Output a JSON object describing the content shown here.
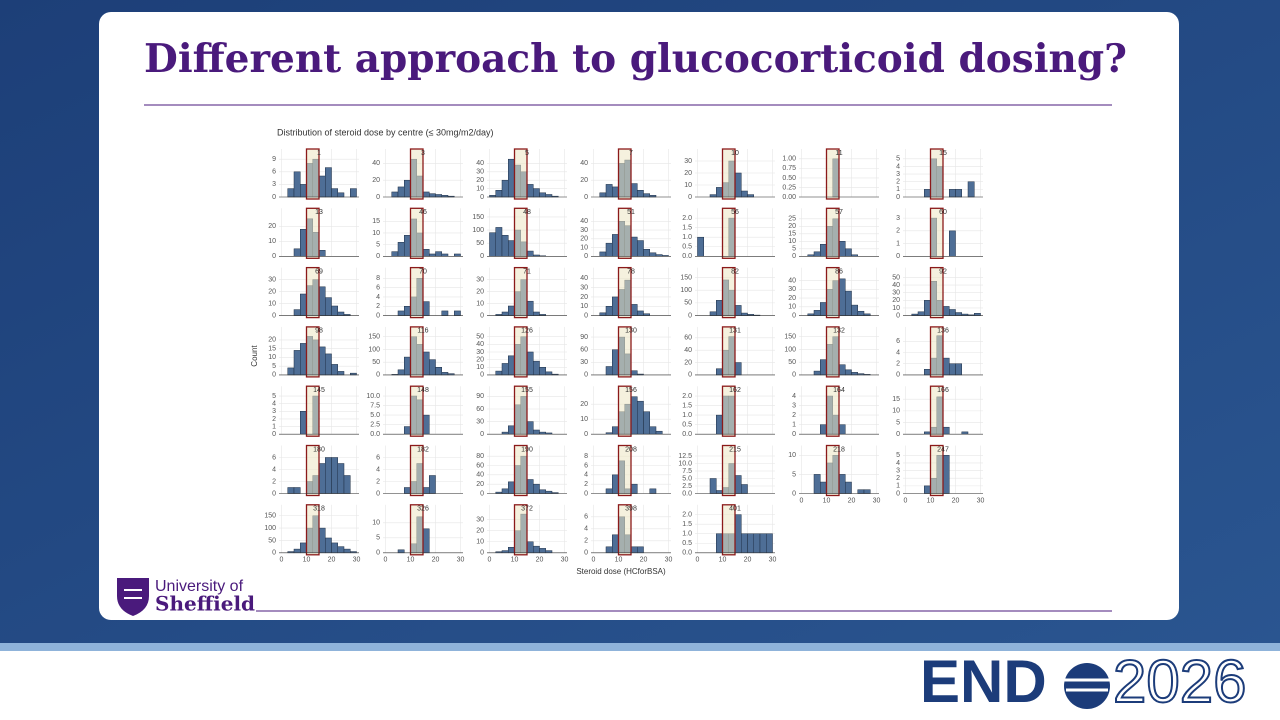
{
  "slide": {
    "title": "Different approach to glucocorticoid dosing?",
    "logo_line1": "University of",
    "logo_line2": "Sheffield",
    "brand_left": "END",
    "brand_right": "2026"
  },
  "chart_data": {
    "type": "histogram",
    "title": "Distribution of steroid dose by centre (≤ 30mg/m2/day)",
    "xlabel": "Steroid dose (HCforBSA)",
    "ylabel": "Count",
    "bins": [
      0,
      2.5,
      5,
      7.5,
      10,
      12.5,
      15,
      17.5,
      20,
      22.5,
      25,
      27.5,
      30
    ],
    "xlim": [
      -1,
      31
    ],
    "xticks": [
      0,
      10,
      20,
      30
    ],
    "highlight": [
      10,
      15
    ],
    "color": "#4e6e96",
    "highlight_color": "#8b1a1a",
    "grid": true,
    "panels": [
      {
        "name": "1",
        "counts": [
          0,
          2,
          6,
          3,
          8,
          9,
          5,
          7,
          2,
          1,
          0,
          2
        ],
        "ylim": [
          0,
          10
        ],
        "yticks": [
          0,
          3,
          6,
          9
        ]
      },
      {
        "name": "3",
        "counts": [
          0,
          6,
          12,
          20,
          45,
          25,
          6,
          4,
          3,
          2,
          1,
          0
        ],
        "ylim": [
          0,
          50
        ],
        "yticks": [
          0,
          20,
          40
        ]
      },
      {
        "name": "5",
        "counts": [
          2,
          8,
          20,
          45,
          38,
          30,
          15,
          10,
          5,
          3,
          1,
          0
        ],
        "ylim": [
          0,
          50
        ],
        "yticks": [
          0,
          10,
          20,
          30,
          40
        ]
      },
      {
        "name": "7",
        "counts": [
          0,
          5,
          15,
          12,
          40,
          44,
          16,
          8,
          4,
          2,
          0,
          0
        ],
        "ylim": [
          0,
          50
        ],
        "yticks": [
          0,
          20,
          40
        ]
      },
      {
        "name": "10",
        "counts": [
          0,
          0,
          2,
          8,
          12,
          30,
          20,
          5,
          2,
          0,
          0,
          0
        ],
        "ylim": [
          0,
          35
        ],
        "yticks": [
          0,
          10,
          20,
          30
        ]
      },
      {
        "name": "11",
        "counts": [
          0,
          0,
          0,
          0,
          0,
          1,
          0,
          0,
          0,
          0,
          0,
          0
        ],
        "ylim": [
          0,
          1.1
        ],
        "yticks": [
          {
            "value": 0,
            "label": "0.00"
          },
          0.25,
          {
            "value": 0.5,
            "label": "0.50"
          },
          0.75,
          {
            "value": 1,
            "label": "1.00"
          }
        ]
      },
      {
        "name": "15",
        "counts": [
          0,
          0,
          0,
          1,
          5,
          4,
          0,
          1,
          1,
          0,
          2,
          0
        ],
        "ylim": [
          0,
          5.5
        ],
        "yticks": [
          0,
          1,
          2,
          3,
          4,
          5
        ]
      },
      {
        "name": "13",
        "counts": [
          0,
          0,
          5,
          18,
          25,
          16,
          4,
          0,
          0,
          0,
          0,
          0
        ],
        "ylim": [
          0,
          28
        ],
        "yticks": [
          0,
          10,
          20
        ]
      },
      {
        "name": "46",
        "counts": [
          0,
          2,
          6,
          9,
          16,
          10,
          3,
          1,
          2,
          1,
          0,
          1
        ],
        "ylim": [
          0,
          18
        ],
        "yticks": [
          0,
          5,
          10,
          15
        ]
      },
      {
        "name": "48",
        "counts": [
          90,
          110,
          80,
          60,
          100,
          55,
          20,
          5,
          2,
          0,
          0,
          0
        ],
        "ylim": [
          0,
          160
        ],
        "yticks": [
          0,
          50,
          100,
          150
        ]
      },
      {
        "name": "51",
        "counts": [
          0,
          5,
          15,
          25,
          40,
          35,
          22,
          18,
          8,
          4,
          2,
          1
        ],
        "ylim": [
          0,
          48
        ],
        "yticks": [
          0,
          10,
          20,
          30,
          40
        ]
      },
      {
        "name": "56",
        "counts": [
          1,
          0,
          0,
          0,
          0,
          2,
          0,
          0,
          0,
          0,
          0,
          0
        ],
        "ylim": [
          0,
          2.2
        ],
        "yticks": [
          {
            "value": 0,
            "label": "0.0"
          },
          0.5,
          {
            "value": 1,
            "label": "1.0"
          },
          1.5,
          {
            "value": 2,
            "label": "2.0"
          }
        ]
      },
      {
        "name": "57",
        "counts": [
          0,
          1,
          3,
          8,
          20,
          25,
          10,
          5,
          1,
          0,
          0,
          0
        ],
        "ylim": [
          0,
          28
        ],
        "yticks": [
          0,
          5,
          10,
          15,
          20,
          25
        ]
      },
      {
        "name": "60",
        "counts": [
          0,
          0,
          0,
          0,
          3,
          0,
          0,
          2,
          0,
          0,
          0,
          0
        ],
        "ylim": [
          0,
          3.3
        ],
        "yticks": [
          0,
          1,
          2,
          3
        ]
      },
      {
        "name": "69",
        "counts": [
          0,
          0,
          5,
          18,
          25,
          30,
          24,
          15,
          8,
          3,
          1,
          0
        ],
        "ylim": [
          0,
          35
        ],
        "yticks": [
          0,
          10,
          20,
          30
        ]
      },
      {
        "name": "70",
        "counts": [
          0,
          0,
          1,
          2,
          4,
          8,
          3,
          0,
          0,
          1,
          0,
          1
        ],
        "ylim": [
          0,
          9
        ],
        "yticks": [
          0,
          2,
          4,
          6,
          8
        ]
      },
      {
        "name": "71",
        "counts": [
          0,
          1,
          3,
          8,
          20,
          30,
          12,
          3,
          1,
          0,
          0,
          0
        ],
        "ylim": [
          0,
          35
        ],
        "yticks": [
          0,
          10,
          20,
          30
        ]
      },
      {
        "name": "78",
        "counts": [
          0,
          3,
          10,
          20,
          28,
          38,
          12,
          5,
          2,
          0,
          0,
          0
        ],
        "ylim": [
          0,
          45
        ],
        "yticks": [
          0,
          10,
          20,
          30,
          40
        ]
      },
      {
        "name": "82",
        "counts": [
          0,
          0,
          15,
          60,
          140,
          100,
          40,
          10,
          5,
          2,
          0,
          0
        ],
        "ylim": [
          0,
          165
        ],
        "yticks": [
          0,
          50,
          100,
          150
        ]
      },
      {
        "name": "86",
        "counts": [
          0,
          2,
          6,
          15,
          30,
          40,
          42,
          28,
          12,
          5,
          2,
          0
        ],
        "ylim": [
          0,
          48
        ],
        "yticks": [
          0,
          10,
          20,
          30,
          40
        ]
      },
      {
        "name": "92",
        "counts": [
          0,
          2,
          5,
          20,
          45,
          20,
          12,
          8,
          4,
          2,
          1,
          3
        ],
        "ylim": [
          0,
          55
        ],
        "yticks": [
          0,
          10,
          20,
          30,
          40,
          50
        ]
      },
      {
        "name": "98",
        "counts": [
          0,
          4,
          14,
          18,
          22,
          20,
          16,
          12,
          6,
          2,
          0,
          1
        ],
        "ylim": [
          0,
          24
        ],
        "yticks": [
          0,
          5,
          10,
          15,
          20
        ]
      },
      {
        "name": "116",
        "counts": [
          0,
          2,
          20,
          70,
          150,
          120,
          90,
          60,
          30,
          10,
          5,
          0
        ],
        "ylim": [
          0,
          165
        ],
        "yticks": [
          0,
          50,
          100,
          150
        ]
      },
      {
        "name": "126",
        "counts": [
          0,
          5,
          15,
          25,
          40,
          50,
          30,
          18,
          10,
          4,
          1,
          0
        ],
        "ylim": [
          0,
          55
        ],
        "yticks": [
          0,
          10,
          20,
          30,
          40,
          50
        ]
      },
      {
        "name": "130",
        "counts": [
          0,
          0,
          20,
          60,
          90,
          50,
          10,
          2,
          0,
          0,
          0,
          0
        ],
        "ylim": [
          0,
          100
        ],
        "yticks": [
          0,
          30,
          60,
          90
        ]
      },
      {
        "name": "131",
        "counts": [
          0,
          0,
          0,
          10,
          40,
          62,
          20,
          0,
          0,
          0,
          0,
          0
        ],
        "ylim": [
          0,
          68
        ],
        "yticks": [
          0,
          20,
          40,
          60
        ]
      },
      {
        "name": "132",
        "counts": [
          0,
          0,
          15,
          60,
          120,
          150,
          40,
          20,
          10,
          5,
          2,
          0
        ],
        "ylim": [
          0,
          165
        ],
        "yticks": [
          0,
          50,
          100,
          150
        ]
      },
      {
        "name": "136",
        "counts": [
          0,
          0,
          0,
          1,
          3,
          7,
          3,
          2,
          2,
          0,
          0,
          0
        ],
        "ylim": [
          0,
          7.5
        ],
        "yticks": [
          0,
          2,
          4,
          6
        ]
      },
      {
        "name": "145",
        "counts": [
          0,
          0,
          0,
          3,
          0,
          5,
          0,
          0,
          0,
          0,
          0,
          0
        ],
        "ylim": [
          0,
          5.5
        ],
        "yticks": [
          0,
          1,
          2,
          3,
          4,
          5
        ]
      },
      {
        "name": "148",
        "counts": [
          0,
          0,
          0,
          2,
          10,
          9,
          5,
          0,
          0,
          0,
          0,
          0
        ],
        "ylim": [
          0,
          11
        ],
        "yticks": [
          {
            "value": 0,
            "label": "0.0"
          },
          2.5,
          {
            "value": 5,
            "label": "5.0"
          },
          7.5,
          {
            "value": 10,
            "label": "10.0"
          }
        ]
      },
      {
        "name": "155",
        "counts": [
          0,
          0,
          5,
          20,
          70,
          90,
          30,
          10,
          5,
          3,
          0,
          0
        ],
        "ylim": [
          0,
          100
        ],
        "yticks": [
          0,
          30,
          60,
          90
        ]
      },
      {
        "name": "156",
        "counts": [
          0,
          0,
          1,
          5,
          15,
          20,
          25,
          22,
          15,
          5,
          2,
          0
        ],
        "ylim": [
          0,
          28
        ],
        "yticks": [
          0,
          10,
          20
        ]
      },
      {
        "name": "162",
        "counts": [
          0,
          0,
          0,
          1,
          2,
          2,
          0,
          0,
          0,
          0,
          0,
          0
        ],
        "ylim": [
          0,
          2.2
        ],
        "yticks": [
          {
            "value": 0,
            "label": "0.0"
          },
          0.5,
          {
            "value": 1,
            "label": "1.0"
          },
          1.5,
          {
            "value": 2,
            "label": "2.0"
          }
        ]
      },
      {
        "name": "164",
        "counts": [
          0,
          0,
          0,
          1,
          4,
          2,
          1,
          0,
          0,
          0,
          0,
          0
        ],
        "ylim": [
          0,
          4.4
        ],
        "yticks": [
          0,
          1,
          2,
          3,
          4
        ]
      },
      {
        "name": "166",
        "counts": [
          0,
          0,
          0,
          1,
          3,
          16,
          3,
          0,
          0,
          1,
          0,
          0
        ],
        "ylim": [
          0,
          18
        ],
        "yticks": [
          0,
          5,
          10,
          15
        ]
      },
      {
        "name": "180",
        "counts": [
          0,
          1,
          1,
          0,
          2,
          3,
          5,
          6,
          6,
          5,
          3,
          0
        ],
        "ylim": [
          0,
          7
        ],
        "yticks": [
          0,
          2,
          4,
          6
        ]
      },
      {
        "name": "182",
        "counts": [
          0,
          0,
          0,
          1,
          2,
          5,
          1,
          3,
          0,
          0,
          0,
          0
        ],
        "ylim": [
          0,
          7
        ],
        "yticks": [
          0,
          2,
          4,
          6
        ]
      },
      {
        "name": "190",
        "counts": [
          0,
          3,
          10,
          25,
          60,
          80,
          30,
          20,
          8,
          5,
          2,
          0
        ],
        "ylim": [
          0,
          90
        ],
        "yticks": [
          0,
          20,
          40,
          60,
          80
        ]
      },
      {
        "name": "208",
        "counts": [
          0,
          0,
          1,
          4,
          7,
          1,
          2,
          0,
          0,
          1,
          0,
          0
        ],
        "ylim": [
          0,
          9
        ],
        "yticks": [
          0,
          2,
          4,
          6,
          8
        ]
      },
      {
        "name": "215",
        "counts": [
          0,
          0,
          5,
          1,
          2,
          10,
          6,
          3,
          0,
          0,
          0,
          0
        ],
        "ylim": [
          0,
          14
        ],
        "yticks": [
          {
            "value": 0,
            "label": "0.0"
          },
          2.5,
          {
            "value": 5,
            "label": "5.0"
          },
          7.5,
          {
            "value": 10,
            "label": "10.0"
          },
          12.5
        ]
      },
      {
        "name": "218",
        "counts": [
          0,
          0,
          5,
          3,
          8,
          10,
          5,
          3,
          0,
          1,
          1,
          0
        ],
        "ylim": [
          0,
          11
        ],
        "yticks": [
          0,
          5,
          10
        ]
      },
      {
        "name": "247",
        "counts": [
          0,
          0,
          0,
          1,
          2,
          5,
          5,
          0,
          0,
          0,
          0,
          0
        ],
        "ylim": [
          0,
          5.5
        ],
        "yticks": [
          0,
          1,
          2,
          3,
          4,
          5
        ]
      },
      {
        "name": "318",
        "counts": [
          0,
          5,
          15,
          40,
          100,
          150,
          100,
          60,
          40,
          25,
          15,
          5
        ],
        "ylim": [
          0,
          170
        ],
        "yticks": [
          0,
          50,
          100,
          150
        ]
      },
      {
        "name": "326",
        "counts": [
          0,
          0,
          1,
          0,
          3,
          12,
          8,
          0,
          0,
          0,
          0,
          0
        ],
        "ylim": [
          0,
          14
        ],
        "yticks": [
          0,
          5,
          10
        ]
      },
      {
        "name": "372",
        "counts": [
          0,
          1,
          2,
          5,
          20,
          35,
          10,
          6,
          4,
          2,
          0,
          0
        ],
        "ylim": [
          0,
          38
        ],
        "yticks": [
          0,
          10,
          20,
          30
        ]
      },
      {
        "name": "398",
        "counts": [
          0,
          0,
          1,
          3,
          6,
          3,
          1,
          1,
          0,
          0,
          0,
          0
        ],
        "ylim": [
          0,
          7
        ],
        "yticks": [
          0,
          2,
          4,
          6
        ]
      },
      {
        "name": "401",
        "counts": [
          0,
          0,
          0,
          1,
          1,
          1,
          2,
          1,
          1,
          1,
          1,
          1
        ],
        "ylim": [
          0,
          2.2
        ],
        "yticks": [
          {
            "value": 0,
            "label": "0.0"
          },
          0.5,
          {
            "value": 1,
            "label": "1.0"
          },
          1.5,
          {
            "value": 2,
            "label": "2.0"
          }
        ]
      }
    ]
  }
}
